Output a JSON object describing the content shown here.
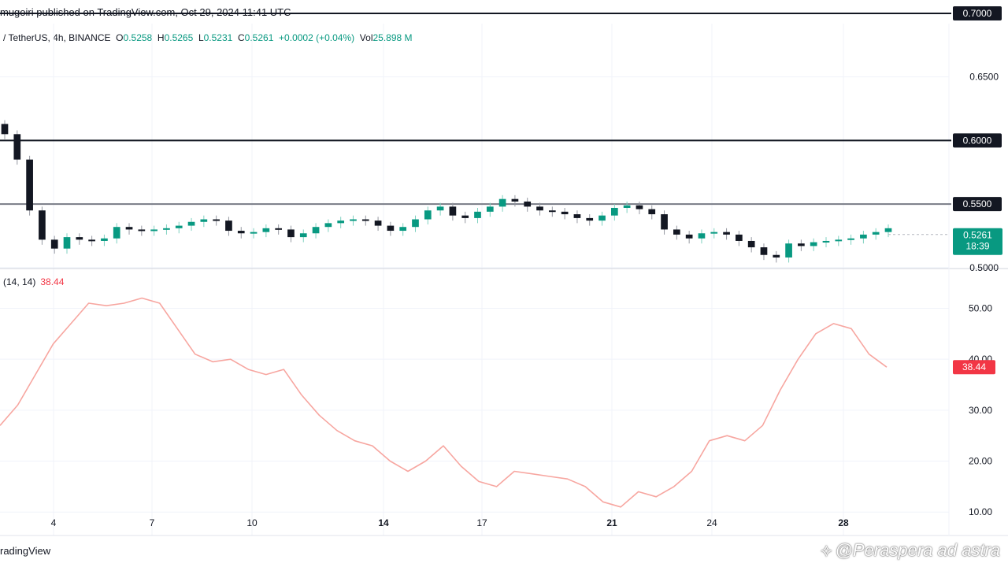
{
  "header": {
    "published": "mugoiri published on TradingView.com, Oct 29, 2024 11:41 UTC"
  },
  "symbol": {
    "name": "/ TetherUS, 4h, BINANCE",
    "o_label": "O",
    "o_value": "0.5258",
    "h_label": "H",
    "h_value": "0.5265",
    "l_label": "L",
    "l_value": "0.5231",
    "c_label": "C",
    "c_value": "0.5261",
    "change": "+0.0002 (+0.04%)",
    "vol_label": "Vol",
    "vol_value": "25.898 M"
  },
  "rsi_legend": {
    "label": "(14, 14)",
    "value": "38.44"
  },
  "footer": {
    "brand": "radingView"
  },
  "watermark": {
    "icon": "⟡",
    "text": "@Peraspera ad astra"
  },
  "colors": {
    "up": "#089981",
    "down": "#131722",
    "rsi": "#f7a6a0",
    "badge_up": "#089981",
    "badge_rsi": "#f23645",
    "level": "#131722"
  },
  "chart_data": [
    {
      "type": "candlestick",
      "title": "",
      "x_ticks": [
        "4",
        "7",
        "10",
        "14",
        "17",
        "21",
        "24",
        "28"
      ],
      "y_ticks": [
        "0.7000",
        "0.6500",
        "0.6000",
        "0.5500",
        "0.5000"
      ],
      "ylim": [
        0.4993,
        0.7105
      ],
      "grid": true,
      "levels": [
        {
          "value": 0.7,
          "label": "0.7000"
        },
        {
          "value": 0.6,
          "label": "0.6000"
        },
        {
          "value": 0.55,
          "label": "0.5500"
        }
      ],
      "last_price": {
        "value": 0.5261,
        "label": "0.5261",
        "countdown": "18:39"
      },
      "close_series": [
        0.605,
        0.585,
        0.545,
        0.522,
        0.515,
        0.524,
        0.522,
        0.521,
        0.523,
        0.532,
        0.53,
        0.529,
        0.53,
        0.531,
        0.533,
        0.536,
        0.538,
        0.537,
        0.529,
        0.527,
        0.528,
        0.531,
        0.53,
        0.524,
        0.527,
        0.532,
        0.535,
        0.537,
        0.538,
        0.537,
        0.533,
        0.529,
        0.532,
        0.538,
        0.545,
        0.548,
        0.541,
        0.539,
        0.544,
        0.548,
        0.554,
        0.552,
        0.548,
        0.545,
        0.544,
        0.542,
        0.539,
        0.537,
        0.541,
        0.547,
        0.549,
        0.546,
        0.542,
        0.53,
        0.526,
        0.523,
        0.527,
        0.528,
        0.526,
        0.521,
        0.516,
        0.51,
        0.508,
        0.519,
        0.517,
        0.52,
        0.521,
        0.522,
        0.523,
        0.526,
        0.528,
        0.531
      ]
    },
    {
      "type": "line",
      "title": "",
      "x_ticks": [
        "4",
        "7",
        "10",
        "14",
        "17",
        "21",
        "24",
        "28"
      ],
      "y_ticks": [
        "50.00",
        "40.00",
        "30.00",
        "20.00",
        "10.00"
      ],
      "ylim": [
        5.4,
        57.8
      ],
      "series": [
        {
          "name": "(14, 14)",
          "values": [
            27,
            31,
            37,
            43,
            47,
            51,
            50.5,
            51,
            52,
            51,
            46,
            41,
            39.5,
            40,
            38,
            37,
            38,
            33,
            29,
            26,
            24,
            23,
            20,
            18,
            20,
            23,
            19,
            16,
            15,
            18,
            17.5,
            17,
            16.5,
            15,
            12,
            11,
            14,
            13,
            15,
            18,
            24,
            25,
            24,
            27,
            34,
            40,
            45,
            47,
            46,
            41,
            38.44
          ]
        }
      ],
      "last_value": {
        "value": 38.44,
        "label": "38.44"
      }
    }
  ]
}
